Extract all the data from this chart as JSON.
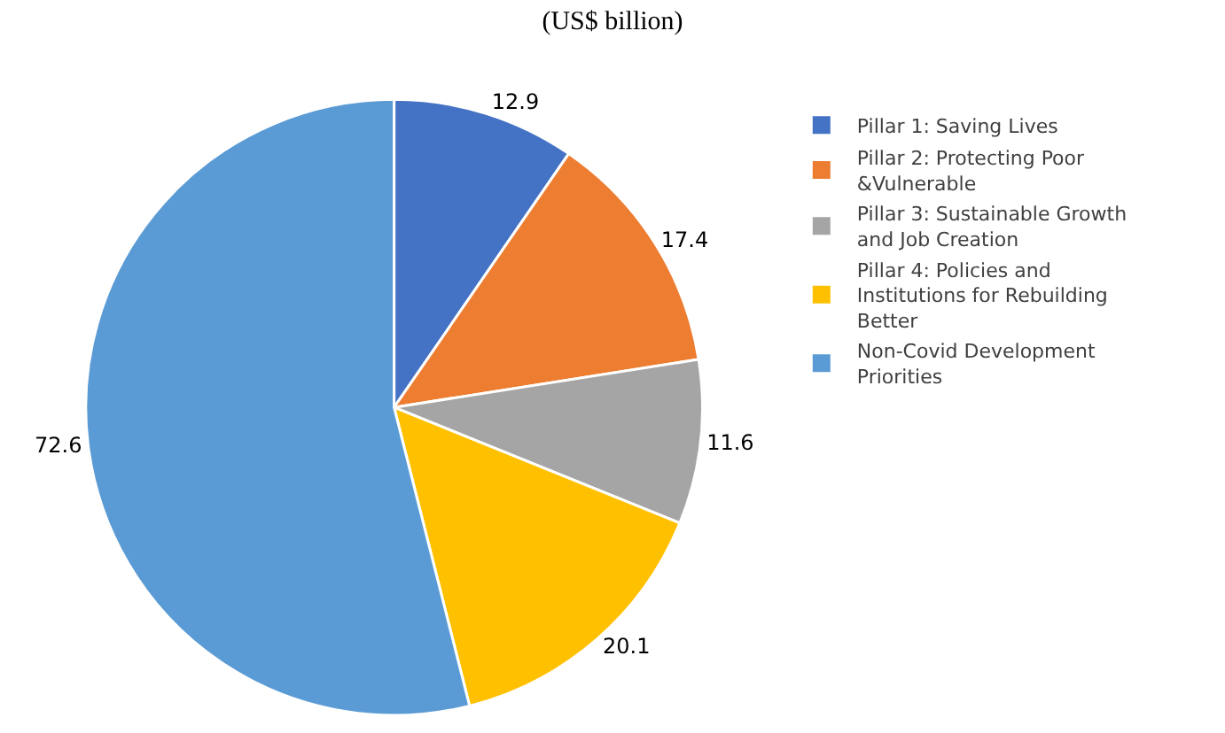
{
  "chart_data": {
    "type": "pie",
    "title": "(US$ billion)",
    "categories": [
      "Pillar 1: Saving Lives",
      "Pillar 2: Protecting Poor &Vulnerable",
      "Pillar 3: Sustainable Growth and Job Creation",
      "Pillar 4: Policies and Institutions for Rebuilding Better",
      "Non-Covid Development Priorities"
    ],
    "values": [
      12.9,
      17.4,
      11.6,
      20.1,
      72.6
    ],
    "colors": [
      "#4472c4",
      "#ed7d31",
      "#a5a5a5",
      "#ffc000",
      "#5b9bd5"
    ],
    "data_labels": true,
    "legend": "right"
  }
}
